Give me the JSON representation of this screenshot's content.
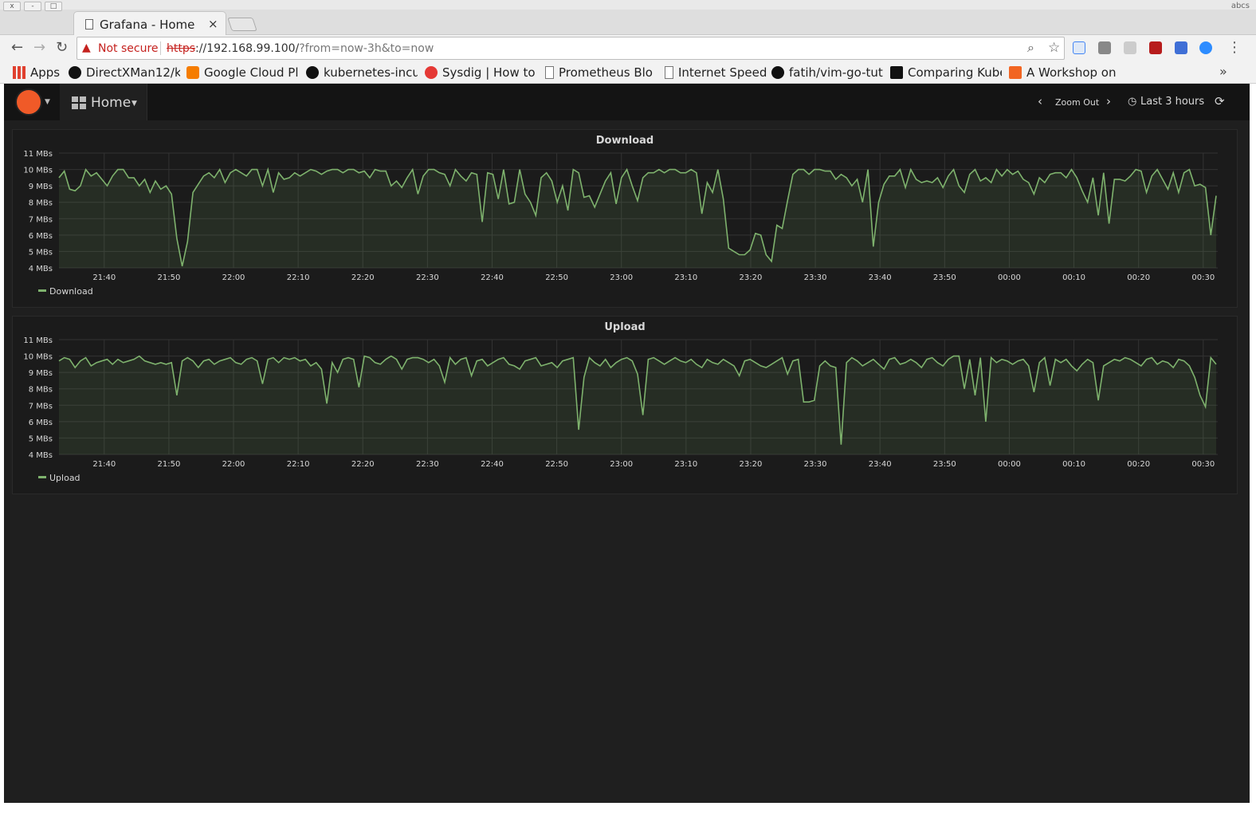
{
  "browser": {
    "window_label": "abcs",
    "tab_title": "Grafana - Home",
    "tab_close": "×",
    "security_text": "Not secure",
    "url_scheme": "https",
    "url_host": "://192.168.99.100/",
    "url_rest": "?from=now-3h&to=now",
    "bookmarks": [
      {
        "label": "Apps",
        "icon": "apps-grid-icon",
        "color": "#e0402f"
      },
      {
        "label": "DirectXMan12/k",
        "icon": "github-icon",
        "color": "#111111"
      },
      {
        "label": "Google Cloud Pla",
        "icon": "blogger-icon",
        "color": "#f57c00"
      },
      {
        "label": "kubernetes-incu",
        "icon": "github-icon",
        "color": "#111111"
      },
      {
        "label": "Sysdig | How to r",
        "icon": "sysdig-icon",
        "color": "#e53935"
      },
      {
        "label": "Prometheus Blo",
        "icon": "page-icon",
        "color": "#888888"
      },
      {
        "label": "Internet Speed",
        "icon": "page-icon",
        "color": "#888888"
      },
      {
        "label": "fatih/vim-go-tut",
        "icon": "github-icon",
        "color": "#111111"
      },
      {
        "label": "Comparing Kube",
        "icon": "medium-icon",
        "color": "#111111"
      },
      {
        "label": "A Workshop on L",
        "icon": "ycombinator-icon",
        "color": "#f26522"
      }
    ],
    "bookmarks_more": "»"
  },
  "grafana": {
    "dashboard_title": "Home",
    "zoom_out": "Zoom Out",
    "time_range": "Last 3 hours",
    "colors": {
      "series": "#7eb26d",
      "background": "#1f1f1f",
      "panel": "#1b1b1b"
    }
  },
  "chart_data": [
    {
      "type": "line",
      "title": "Download",
      "ylim": [
        4,
        11
      ],
      "yticks": [
        "11 MBs",
        "10 MBs",
        "9 MBs",
        "8 MBs",
        "7 MBs",
        "6 MBs",
        "5 MBs",
        "4 MBs"
      ],
      "xticks": [
        "21:40",
        "21:50",
        "22:00",
        "22:10",
        "22:20",
        "22:30",
        "22:40",
        "22:50",
        "23:00",
        "23:10",
        "23:20",
        "23:30",
        "23:40",
        "23:50",
        "00:00",
        "00:10",
        "00:20",
        "00:30"
      ],
      "x_start": "21:33",
      "x_end": "00:32",
      "legend": "Download",
      "series": [
        {
          "name": "Download",
          "values": [
            9.5,
            9.9,
            8.8,
            8.7,
            9.0,
            10.0,
            9.6,
            9.8,
            9.4,
            9.0,
            9.6,
            10.0,
            10.0,
            9.5,
            9.5,
            9.0,
            9.4,
            8.6,
            9.3,
            8.8,
            9.0,
            8.5,
            5.8,
            4.1,
            5.6,
            8.6,
            9.1,
            9.6,
            9.8,
            9.5,
            10.0,
            9.2,
            9.8,
            10.0,
            9.8,
            9.6,
            10.0,
            10.0,
            9.0,
            10.0,
            8.6,
            9.8,
            9.4,
            9.5,
            9.8,
            9.6,
            9.8,
            10.0,
            9.9,
            9.7,
            9.9,
            10.0,
            10.0,
            9.8,
            10.0,
            10.0,
            9.8,
            9.9,
            9.5,
            10.0,
            9.9,
            9.9,
            9.0,
            9.3,
            8.9,
            9.5,
            10.0,
            8.5,
            9.6,
            10.0,
            10.0,
            9.8,
            9.7,
            9.0,
            10.0,
            9.6,
            9.3,
            9.8,
            9.7,
            6.8,
            9.8,
            9.7,
            8.2,
            10.0,
            7.9,
            8.0,
            10.0,
            8.5,
            8.0,
            7.2,
            9.5,
            9.8,
            9.3,
            8.0,
            9.0,
            7.5,
            10.0,
            9.8,
            8.3,
            8.4,
            7.7,
            8.5,
            9.3,
            9.8,
            7.9,
            9.5,
            10.0,
            9.0,
            8.1,
            9.5,
            9.8,
            9.8,
            10.0,
            9.8,
            10.0,
            10.0,
            9.8,
            9.8,
            10.0,
            9.8,
            7.3,
            9.2,
            8.6,
            10.0,
            8.2,
            5.2,
            5.0,
            4.8,
            4.8,
            5.1,
            6.1,
            6.0,
            4.8,
            4.4,
            6.6,
            6.4,
            8.1,
            9.7,
            10.0,
            10.0,
            9.7,
            10.0,
            10.0,
            9.9,
            9.9,
            9.4,
            9.7,
            9.5,
            9.0,
            9.4,
            8.0,
            10.0,
            5.3,
            8.0,
            9.1,
            9.6,
            9.6,
            10.0,
            8.9,
            10.0,
            9.4,
            9.2,
            9.3,
            9.2,
            9.5,
            8.9,
            9.6,
            10.0,
            9.0,
            8.6,
            9.7,
            10.0,
            9.3,
            9.5,
            9.2,
            10.0,
            9.6,
            10.0,
            9.7,
            9.9,
            9.4,
            9.2,
            8.5,
            9.5,
            9.2,
            9.7,
            9.8,
            9.8,
            9.5,
            10.0,
            9.5,
            8.7,
            8.0,
            9.5,
            7.2,
            9.8,
            6.7,
            9.4,
            9.4,
            9.3,
            9.6,
            10.0,
            9.9,
            8.6,
            9.6,
            10.0,
            9.4,
            8.8,
            9.8,
            8.6,
            9.8,
            10.0,
            9.0,
            9.1,
            8.9,
            6.0,
            8.4
          ]
        }
      ]
    },
    {
      "type": "line",
      "title": "Upload",
      "ylim": [
        4,
        11
      ],
      "yticks": [
        "11 MBs",
        "10 MBs",
        "9 MBs",
        "8 MBs",
        "7 MBs",
        "6 MBs",
        "5 MBs",
        "4 MBs"
      ],
      "xticks": [
        "21:40",
        "21:50",
        "22:00",
        "22:10",
        "22:20",
        "22:30",
        "22:40",
        "22:50",
        "23:00",
        "23:10",
        "23:20",
        "23:30",
        "23:40",
        "23:50",
        "00:00",
        "00:10",
        "00:20",
        "00:30"
      ],
      "x_start": "21:33",
      "x_end": "00:32",
      "legend": "Upload",
      "series": [
        {
          "name": "Upload",
          "values": [
            9.7,
            9.9,
            9.8,
            9.3,
            9.7,
            9.9,
            9.4,
            9.6,
            9.7,
            9.8,
            9.5,
            9.8,
            9.6,
            9.7,
            9.8,
            10.0,
            9.7,
            9.6,
            9.5,
            9.6,
            9.5,
            9.6,
            7.6,
            9.7,
            9.9,
            9.7,
            9.3,
            9.7,
            9.8,
            9.5,
            9.7,
            9.8,
            9.9,
            9.6,
            9.5,
            9.8,
            9.9,
            9.7,
            8.3,
            9.8,
            9.9,
            9.6,
            9.9,
            9.8,
            9.9,
            9.7,
            9.8,
            9.4,
            9.6,
            9.2,
            7.1,
            9.6,
            9.0,
            9.8,
            9.9,
            9.8,
            8.1,
            10.0,
            9.9,
            9.6,
            9.5,
            9.8,
            10.0,
            9.8,
            9.2,
            9.8,
            9.9,
            9.9,
            9.8,
            9.6,
            9.8,
            9.4,
            8.4,
            9.9,
            9.5,
            9.8,
            9.9,
            8.8,
            9.7,
            9.8,
            9.4,
            9.6,
            9.8,
            9.9,
            9.5,
            9.4,
            9.2,
            9.7,
            9.8,
            9.9,
            9.4,
            9.5,
            9.6,
            9.3,
            9.7,
            9.8,
            9.9,
            5.5,
            8.7,
            9.9,
            9.6,
            9.4,
            9.8,
            9.3,
            9.6,
            9.8,
            9.9,
            9.7,
            8.9,
            6.4,
            9.8,
            9.9,
            9.7,
            9.5,
            9.7,
            9.9,
            9.7,
            9.6,
            9.8,
            9.5,
            9.3,
            9.8,
            9.6,
            9.5,
            9.8,
            9.6,
            9.4,
            8.8,
            9.7,
            9.8,
            9.6,
            9.4,
            9.3,
            9.5,
            9.7,
            9.9,
            8.9,
            9.7,
            9.8,
            7.2,
            7.2,
            7.3,
            9.4,
            9.7,
            9.4,
            9.3,
            4.6,
            9.6,
            9.9,
            9.7,
            9.4,
            9.6,
            9.8,
            9.5,
            9.2,
            9.8,
            9.9,
            9.5,
            9.6,
            9.8,
            9.6,
            9.3,
            9.8,
            9.9,
            9.6,
            9.4,
            9.8,
            10.0,
            10.0,
            8.0,
            9.8,
            7.6,
            9.9,
            6.0,
            9.9,
            9.6,
            9.8,
            9.7,
            9.5,
            9.7,
            9.8,
            9.4,
            7.8,
            9.6,
            9.9,
            8.2,
            9.8,
            9.6,
            9.8,
            9.4,
            9.1,
            9.5,
            9.8,
            9.6,
            7.3,
            9.4,
            9.6,
            9.8,
            9.7,
            9.9,
            9.8,
            9.6,
            9.4,
            9.8,
            9.9,
            9.5,
            9.7,
            9.6,
            9.3,
            9.8,
            9.7,
            9.4,
            8.7,
            7.6,
            6.9,
            9.9,
            9.5
          ]
        }
      ]
    }
  ]
}
